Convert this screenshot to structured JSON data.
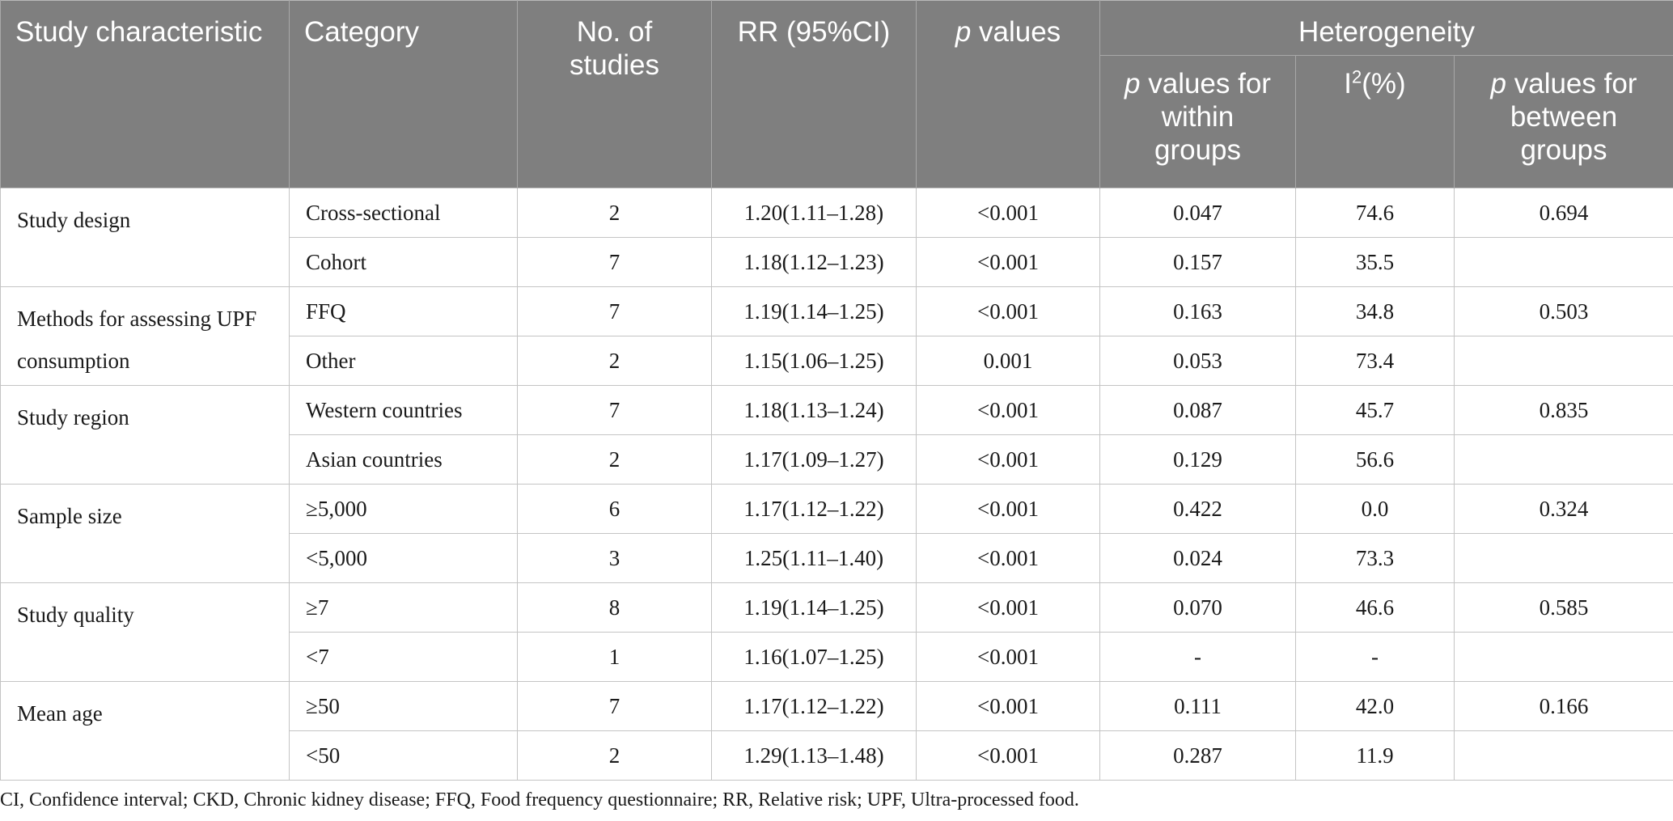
{
  "table": {
    "headers": {
      "study_characteristic": "Study characteristic",
      "category": "Category",
      "no_of_studies": "No. of studies",
      "rr": "RR (95%CI)",
      "p_values_italic": "p",
      "p_values_rest": " values",
      "heterogeneity": "Heterogeneity",
      "within_italic": "p",
      "within_rest": " values for within groups",
      "i2_base": "I",
      "i2_sup": "2",
      "i2_rest": "(%)",
      "between_italic": "p",
      "between_rest": " values for between groups"
    },
    "groups": [
      {
        "characteristic": "Study design",
        "between": "0.694",
        "rows": [
          {
            "category": "Cross-sectional",
            "n": "2",
            "rr": "1.20(1.11–1.28)",
            "p": "<0.001",
            "within": "0.047",
            "i2": "74.6"
          },
          {
            "category": "Cohort",
            "n": "7",
            "rr": "1.18(1.12–1.23)",
            "p": "<0.001",
            "within": "0.157",
            "i2": "35.5"
          }
        ]
      },
      {
        "characteristic": "Methods for assessing UPF consumption",
        "between": "0.503",
        "rows": [
          {
            "category": "FFQ",
            "n": "7",
            "rr": "1.19(1.14–1.25)",
            "p": "<0.001",
            "within": "0.163",
            "i2": "34.8"
          },
          {
            "category": "Other",
            "n": "2",
            "rr": "1.15(1.06–1.25)",
            "p": "0.001",
            "within": "0.053",
            "i2": "73.4"
          }
        ]
      },
      {
        "characteristic": "Study region",
        "between": "0.835",
        "rows": [
          {
            "category": "Western countries",
            "n": "7",
            "rr": "1.18(1.13–1.24)",
            "p": "<0.001",
            "within": "0.087",
            "i2": "45.7"
          },
          {
            "category": "Asian countries",
            "n": "2",
            "rr": "1.17(1.09–1.27)",
            "p": "<0.001",
            "within": "0.129",
            "i2": "56.6"
          }
        ]
      },
      {
        "characteristic": "Sample size",
        "between": "0.324",
        "rows": [
          {
            "category": "≥5,000",
            "n": "6",
            "rr": "1.17(1.12–1.22)",
            "p": "<0.001",
            "within": "0.422",
            "i2": "0.0"
          },
          {
            "category": "<5,000",
            "n": "3",
            "rr": "1.25(1.11–1.40)",
            "p": "<0.001",
            "within": "0.024",
            "i2": "73.3"
          }
        ]
      },
      {
        "characteristic": "Study quality",
        "between": "0.585",
        "rows": [
          {
            "category": "≥7",
            "n": "8",
            "rr": "1.19(1.14–1.25)",
            "p": "<0.001",
            "within": "0.070",
            "i2": "46.6"
          },
          {
            "category": "<7",
            "n": "1",
            "rr": "1.16(1.07–1.25)",
            "p": "<0.001",
            "within": "-",
            "i2": "-"
          }
        ]
      },
      {
        "characteristic": "Mean age",
        "between": "0.166",
        "rows": [
          {
            "category": "≥50",
            "n": "7",
            "rr": "1.17(1.12–1.22)",
            "p": "<0.001",
            "within": "0.111",
            "i2": "42.0"
          },
          {
            "category": "<50",
            "n": "2",
            "rr": "1.29(1.13–1.48)",
            "p": "<0.001",
            "within": "0.287",
            "i2": "11.9"
          }
        ]
      }
    ]
  },
  "footnote": "CI, Confidence interval; CKD, Chronic kidney disease; FFQ, Food frequency questionnaire; RR, Relative risk; UPF, Ultra-processed food."
}
